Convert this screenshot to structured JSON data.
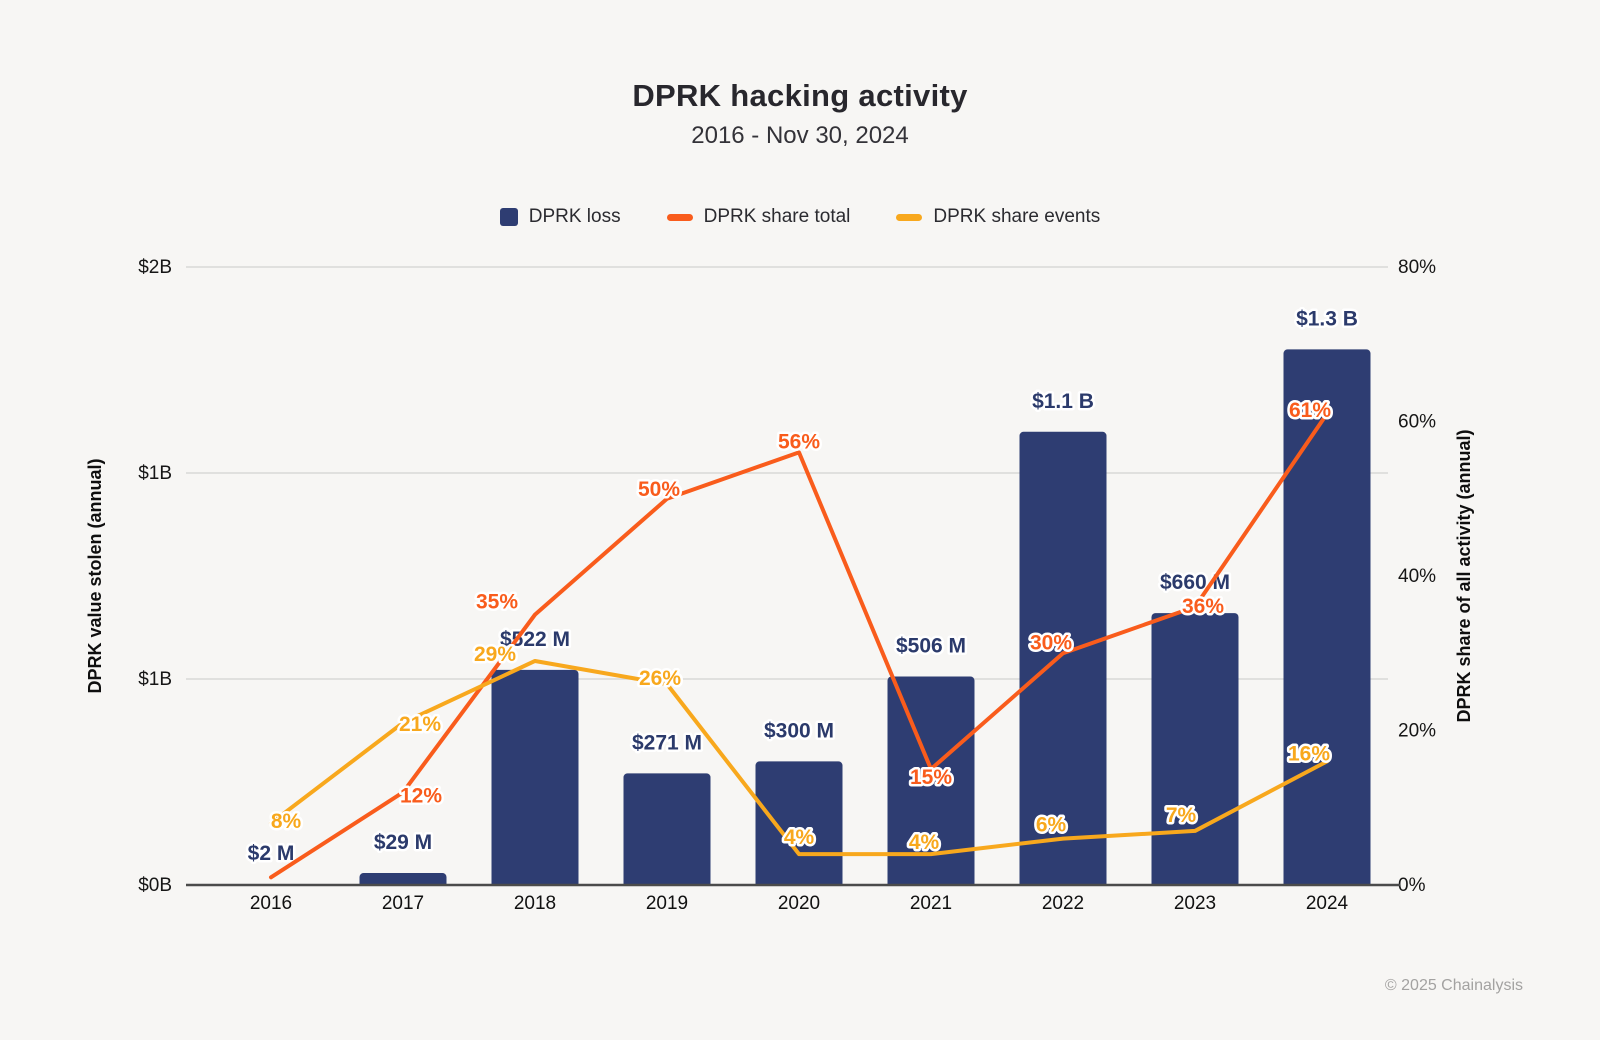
{
  "header": {
    "title": "DPRK hacking activity",
    "subtitle": "2016 - Nov 30, 2024"
  },
  "legend": [
    {
      "label": "DPRK loss",
      "color": "#2e3d72",
      "shape": "square"
    },
    {
      "label": "DPRK share total",
      "color": "#f95c1c",
      "shape": "dash"
    },
    {
      "label": "DPRK share events",
      "color": "#f8a81d",
      "shape": "dash"
    }
  ],
  "footer": {
    "copyright": "© 2025 Chainalysis"
  },
  "chart_data": {
    "type": "bar+line combo",
    "title": "DPRK hacking activity",
    "subtitle": "2016 - Nov 30, 2024",
    "categories": [
      "2016",
      "2017",
      "2018",
      "2019",
      "2020",
      "2021",
      "2022",
      "2023",
      "2024"
    ],
    "series": [
      {
        "name": "DPRK loss",
        "type": "bar",
        "axis": "left",
        "unit": "USD billions",
        "color": "#2e3d72",
        "label_color": "#2b3a6b",
        "values": [
          0.002,
          0.029,
          0.522,
          0.271,
          0.3,
          0.506,
          1.1,
          0.66,
          1.3
        ],
        "labels": [
          "$2 M",
          "$29 M",
          "$522 M",
          "$271 M",
          "$300 M",
          "$506 M",
          "$1.1 B",
          "$660 M",
          "$1.3 B"
        ]
      },
      {
        "name": "DPRK share total",
        "type": "line",
        "axis": "right",
        "unit": "percent",
        "color": "#f95c1c",
        "values": [
          1,
          12,
          35,
          50,
          56,
          15,
          30,
          36,
          61
        ],
        "labels": [
          "",
          "12%",
          "35%",
          "50%",
          "56%",
          "15%",
          "30%",
          "36%",
          "61%"
        ]
      },
      {
        "name": "DPRK share events",
        "type": "line",
        "axis": "right",
        "unit": "percent",
        "color": "#f8a81d",
        "values": [
          8,
          21,
          29,
          26,
          4,
          4,
          6,
          7,
          16
        ],
        "labels": [
          "8%",
          "21%",
          "29%",
          "26%",
          "4%",
          "4%",
          "6%",
          "7%",
          "16%"
        ]
      }
    ],
    "left_axis": {
      "title": "DPRK value stolen (annual)",
      "tick_labels": [
        "$2B",
        "$1B",
        "$1B",
        "$0B"
      ],
      "range_billions": [
        0,
        2
      ]
    },
    "right_axis": {
      "title": "DPRK share of all activity (annual)",
      "tick_labels": [
        "80%",
        "60%",
        "40%",
        "20%",
        "0%"
      ],
      "range_percent": [
        0,
        80
      ]
    },
    "grid": "horizontal-only",
    "legend_position": "top-center"
  }
}
